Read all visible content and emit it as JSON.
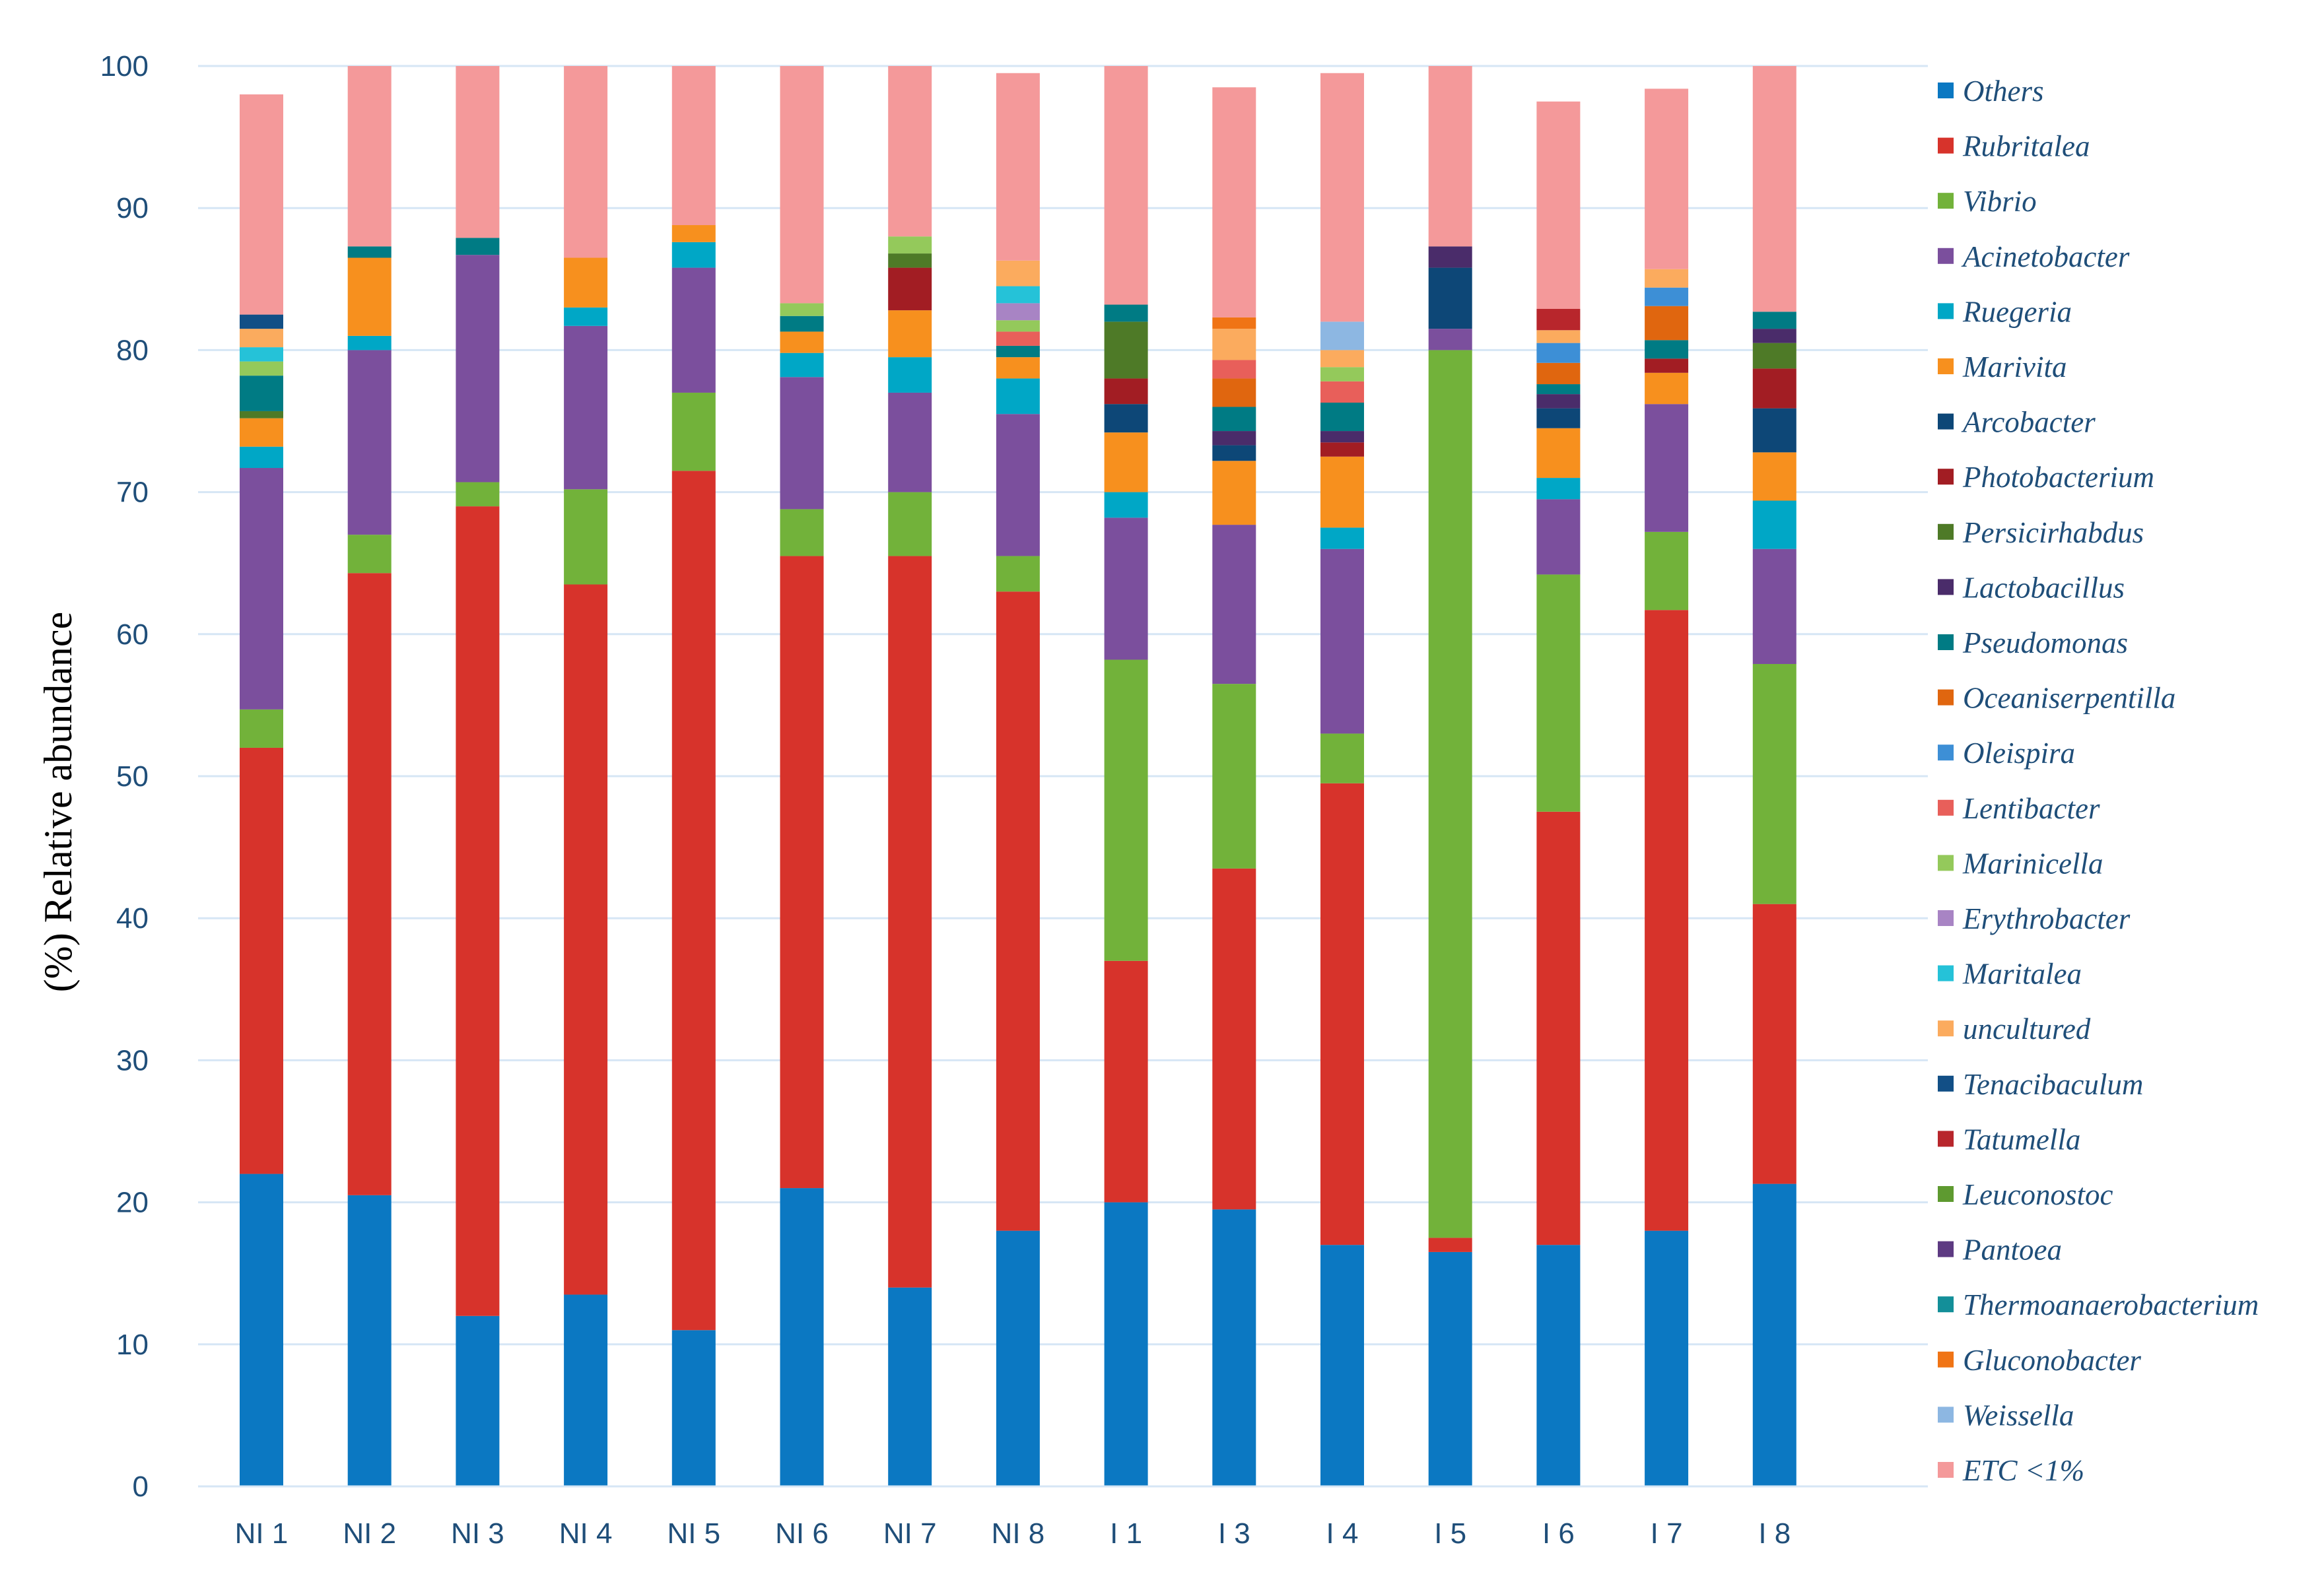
{
  "chart_data": {
    "type": "bar",
    "stacked": true,
    "title": "",
    "xlabel": "",
    "ylabel": "(%) Relative abundance",
    "ylim": [
      0,
      100
    ],
    "yticks": [
      0,
      10,
      20,
      30,
      40,
      50,
      60,
      70,
      80,
      90,
      100
    ],
    "grid": true,
    "legend": "right",
    "categories": [
      "NI 1",
      "NI 2",
      "NI 3",
      "NI 4",
      "NI 5",
      "NI 6",
      "NI 7",
      "NI 8",
      "I 1",
      "I 3",
      "I 4",
      "I 5",
      "I 6",
      "I 7",
      "I 8"
    ],
    "series": [
      {
        "name": "Others",
        "color": "#0b78c2",
        "values": [
          22,
          20.5,
          12,
          13.5,
          11,
          21,
          14,
          18,
          20,
          19.5,
          17,
          16.5,
          17,
          18,
          21.3
        ]
      },
      {
        "name": "Rubritalea",
        "color": "#d7332b",
        "values": [
          30,
          43.8,
          57,
          50,
          60.5,
          44.5,
          51.5,
          45,
          17,
          24,
          32.5,
          1,
          30.5,
          43.7,
          19.7
        ]
      },
      {
        "name": "Vibrio",
        "color": "#72b23a",
        "values": [
          2.7,
          2.7,
          1.7,
          6.7,
          5.5,
          3.3,
          4.5,
          2.5,
          21.2,
          13,
          3.5,
          62.5,
          16.7,
          5.5,
          16.9
        ]
      },
      {
        "name": "Acinetobacter",
        "color": "#7b4f9d",
        "values": [
          17,
          13,
          16,
          11.5,
          8.8,
          9.3,
          7,
          10,
          10,
          11.2,
          13,
          1.5,
          5.3,
          9,
          8.1
        ]
      },
      {
        "name": "Ruegeria",
        "color": "#00a7c6",
        "values": [
          1.5,
          1,
          0,
          1.3,
          1.8,
          1.7,
          2.5,
          2.5,
          1.8,
          0,
          1.5,
          0,
          1.5,
          0,
          3.4
        ]
      },
      {
        "name": "Marivita",
        "color": "#f7901e",
        "values": [
          2,
          5.5,
          0,
          3.5,
          1.2,
          1.5,
          3.3,
          1.5,
          4.2,
          4.5,
          5,
          0,
          3.5,
          2.2,
          3.4
        ]
      },
      {
        "name": "Arcobacter",
        "color": "#0d4777",
        "values": [
          0,
          0,
          0,
          0,
          0,
          0,
          0,
          0,
          2,
          1.1,
          0,
          4.3,
          1.4,
          0,
          3.1
        ]
      },
      {
        "name": "Photobacterium",
        "color": "#a21d23",
        "values": [
          0,
          0,
          0,
          0,
          0,
          0,
          3,
          0,
          1.8,
          0,
          1,
          0,
          0,
          1,
          2.8
        ]
      },
      {
        "name": "Persicirhabdus",
        "color": "#4e7a27",
        "values": [
          0.5,
          0,
          0,
          0,
          0,
          0,
          1,
          0,
          4,
          0,
          0,
          0,
          0,
          0,
          1.8
        ]
      },
      {
        "name": "Lactobacillus",
        "color": "#4a2c6a",
        "values": [
          0,
          0,
          0,
          0,
          0,
          0,
          0,
          0,
          0,
          1,
          0.8,
          1.5,
          1,
          0,
          1
        ]
      },
      {
        "name": "Pseudomonas",
        "color": "#007b84",
        "values": [
          2.5,
          0.8,
          1.2,
          0,
          0,
          1.1,
          0,
          0.8,
          1.2,
          1.7,
          2,
          0,
          0.7,
          1.3,
          1.2
        ]
      },
      {
        "name": "Oceaniserpentilla",
        "color": "#e0660f",
        "values": [
          0,
          0,
          0,
          0,
          0,
          0,
          0,
          0,
          0,
          2,
          0,
          0,
          1.5,
          2.4,
          0
        ]
      },
      {
        "name": "Oleispira",
        "color": "#3d8fd6",
        "values": [
          0,
          0,
          0,
          0,
          0,
          0,
          0,
          0,
          0,
          0,
          0,
          0,
          1.4,
          1.3,
          0
        ]
      },
      {
        "name": "Lentibacter",
        "color": "#e85f5a",
        "values": [
          0,
          0,
          0,
          0,
          0,
          0,
          0,
          1,
          0,
          1.3,
          1.5,
          0,
          0,
          0,
          0
        ]
      },
      {
        "name": "Marinicella",
        "color": "#94c95b",
        "values": [
          1,
          0,
          0,
          0,
          0,
          0.9,
          1.2,
          0.8,
          0,
          0,
          1,
          0,
          0,
          0,
          0
        ]
      },
      {
        "name": "Erythrobacter",
        "color": "#a884c4",
        "values": [
          0,
          0,
          0,
          0,
          0,
          0,
          0,
          1.2,
          0,
          0,
          0,
          0,
          0,
          0,
          0
        ]
      },
      {
        "name": "Maritalea",
        "color": "#25c2d8",
        "values": [
          1,
          0,
          0,
          0,
          0,
          0,
          0,
          1.2,
          0,
          0,
          0,
          0,
          0,
          0,
          0
        ]
      },
      {
        "name": "uncultured",
        "color": "#fbab5e",
        "values": [
          1.3,
          0,
          0,
          0,
          0,
          0,
          0,
          1.8,
          0,
          2.2,
          1.2,
          0,
          0.9,
          1.3,
          0
        ]
      },
      {
        "name": "Tenacibaculum",
        "color": "#124f86",
        "values": [
          1,
          0,
          0,
          0,
          0,
          0,
          0,
          0,
          0,
          0,
          0,
          0,
          0,
          0,
          0
        ]
      },
      {
        "name": "Tatumella",
        "color": "#b8262c",
        "values": [
          0,
          0,
          0,
          0,
          0,
          0,
          0,
          0,
          0,
          0,
          0,
          0,
          1.5,
          0,
          0
        ]
      },
      {
        "name": "Leuconostoc",
        "color": "#5e9a30",
        "values": [
          0,
          0,
          0,
          0,
          0,
          0,
          0,
          0,
          0,
          0,
          0,
          0,
          0,
          0,
          0
        ]
      },
      {
        "name": "Pantoea",
        "color": "#5d3a82",
        "values": [
          0,
          0,
          0,
          0,
          0,
          0,
          0,
          0,
          0,
          0,
          0,
          0,
          0,
          0,
          0
        ]
      },
      {
        "name": "Thermoanaerobacterium",
        "color": "#138f99",
        "values": [
          0,
          0,
          0,
          0,
          0,
          0,
          0,
          0,
          0,
          0,
          0,
          0,
          0,
          0,
          0
        ]
      },
      {
        "name": "Gluconobacter",
        "color": "#f07415",
        "values": [
          0,
          0,
          0,
          0,
          0,
          0,
          0,
          0,
          0,
          0.8,
          0,
          0,
          0,
          0,
          0
        ]
      },
      {
        "name": "Weissella",
        "color": "#8db7e2",
        "values": [
          0,
          0,
          0,
          0,
          0,
          0,
          0,
          0,
          0,
          0,
          2,
          0,
          0,
          0,
          0
        ]
      },
      {
        "name": "ETC <1%",
        "color": "#f4999a",
        "values": [
          15.5,
          12.7,
          12.1,
          13.5,
          11.2,
          16.7,
          12,
          13.2,
          16.8,
          16.2,
          17.5,
          12.7,
          14.6,
          12.7,
          17.3
        ]
      }
    ]
  }
}
